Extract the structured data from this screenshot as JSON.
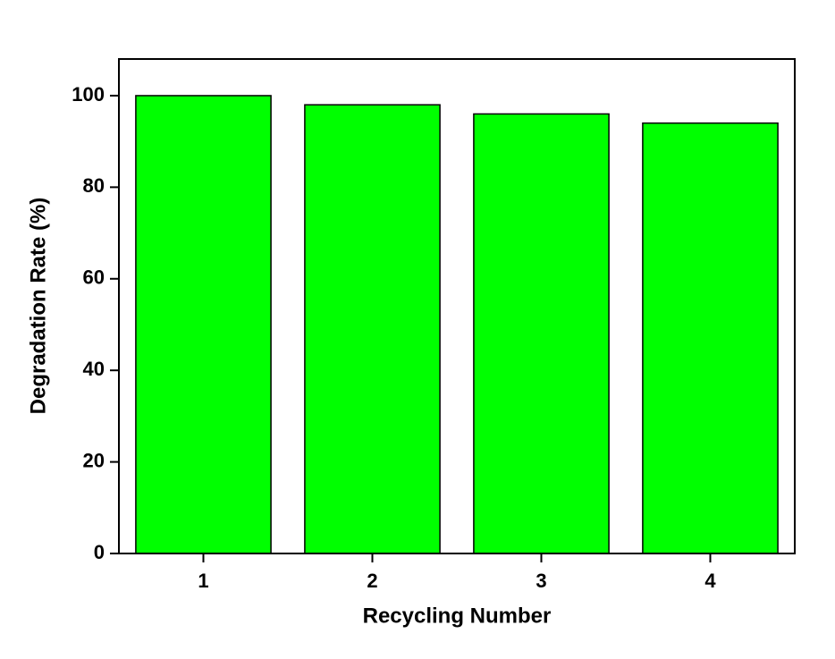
{
  "chart_data": {
    "type": "bar",
    "x_label": "Recycling Number",
    "y_label": "Degradation Rate (%)",
    "categories": [
      "1",
      "2",
      "3",
      "4"
    ],
    "values": [
      100,
      98,
      96,
      94
    ],
    "color": "#00ff00",
    "ylim": [
      0,
      108
    ],
    "yticks": [
      0,
      20,
      40,
      60,
      80,
      100
    ],
    "grid": false
  }
}
